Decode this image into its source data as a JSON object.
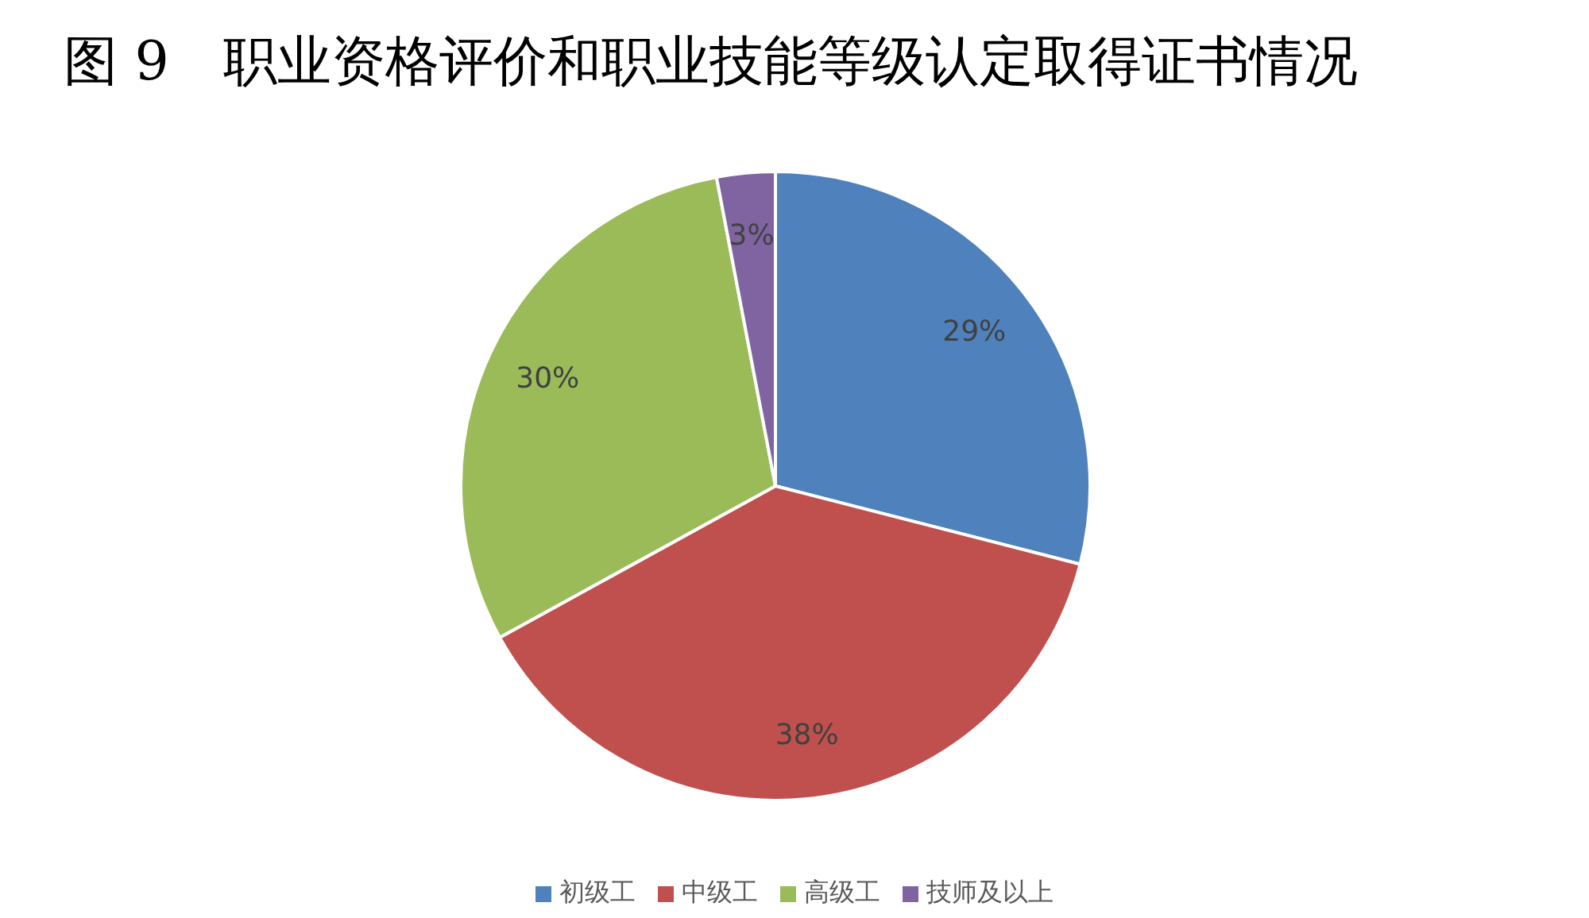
{
  "chart_data": {
    "type": "pie",
    "title": "图 9　职业资格评价和职业技能等级认定取得证书情况",
    "categories": [
      "初级工",
      "中级工",
      "高级工",
      "技师及以上"
    ],
    "values": [
      29,
      38,
      30,
      3
    ],
    "colors": [
      "#4f81bd",
      "#c0504d",
      "#9bbb59",
      "#8064a2"
    ],
    "value_labels": [
      "29%",
      "38%",
      "30%",
      "3%"
    ],
    "legend": "bottom"
  }
}
